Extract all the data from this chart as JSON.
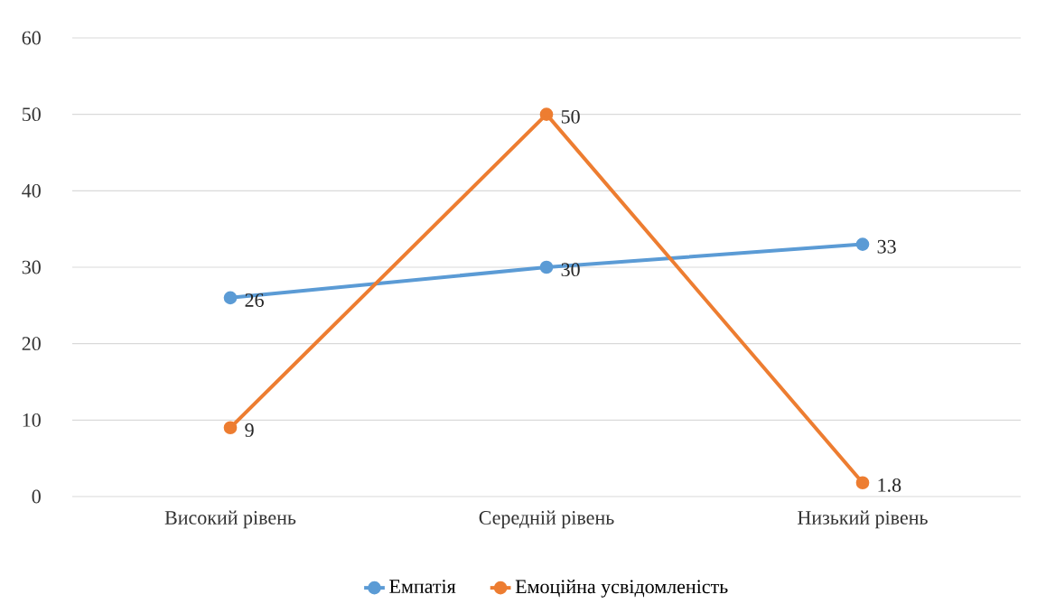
{
  "chart_data": {
    "type": "line",
    "categories": [
      "Високий рівень",
      "Середній рівень",
      "Низький рівень"
    ],
    "series": [
      {
        "name": "Емпатія",
        "color": "#5b9bd5",
        "values": [
          26,
          30,
          33
        ]
      },
      {
        "name": "Емоційна усвідомленість",
        "color": "#ed7d31",
        "values": [
          9,
          50,
          1.8
        ]
      }
    ],
    "ylim": [
      0,
      60
    ],
    "yticks": [
      0,
      10,
      20,
      30,
      40,
      50,
      60
    ],
    "grid": "y",
    "legend": "bottom",
    "marker": "circle",
    "line_style": "solid",
    "data_labels": true
  }
}
